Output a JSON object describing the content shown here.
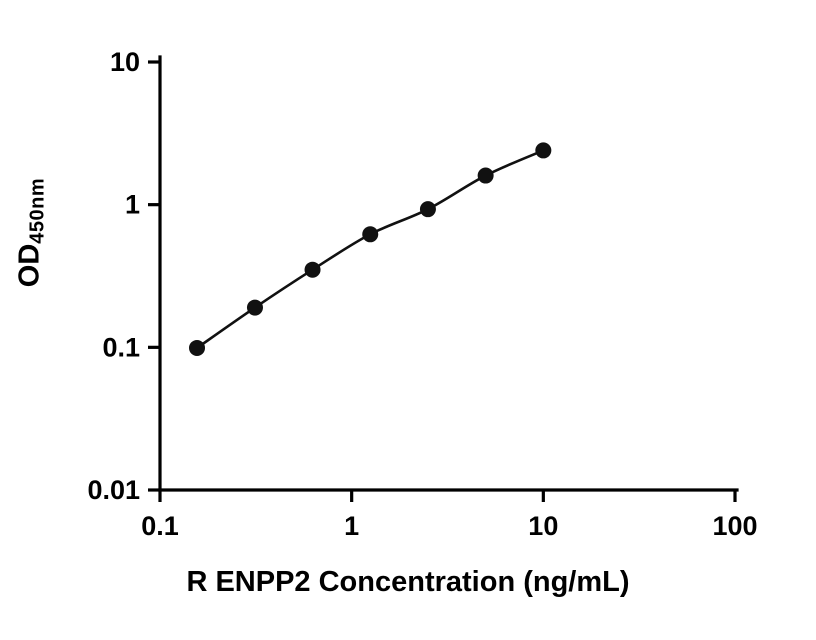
{
  "figure": {
    "background": "#ffffff",
    "axis_color": "#000000"
  },
  "chart_data": {
    "type": "line",
    "title": "",
    "xlabel": "R ENPP2 Concentration (ng/mL)",
    "ylabel_main": "OD",
    "ylabel_sub": "450nm",
    "scale": {
      "x": "log",
      "y": "log"
    },
    "x": [
      0.156,
      0.313,
      0.625,
      1.25,
      2.5,
      5,
      10
    ],
    "y": [
      0.099,
      0.19,
      0.35,
      0.62,
      0.93,
      1.6,
      2.4
    ],
    "xlim": [
      0.1,
      100
    ],
    "ylim": [
      0.01,
      10
    ],
    "x_tick_values": [
      0.1,
      1,
      10,
      100
    ],
    "x_tick_labels": [
      "0.1",
      "1",
      "10",
      "100"
    ],
    "y_tick_values": [
      0.01,
      0.1,
      1,
      10
    ],
    "y_tick_labels": [
      "0.01",
      "0.1",
      "1",
      "10"
    ],
    "grid": false,
    "legend": null,
    "line_color": "#111111",
    "marker_color": "#111111",
    "marker_radius": 8
  }
}
